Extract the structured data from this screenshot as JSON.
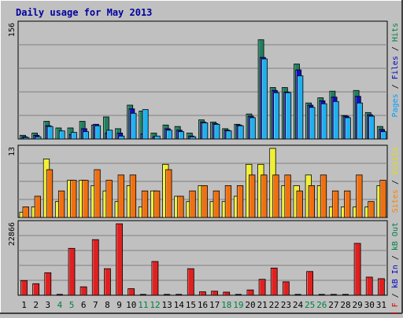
{
  "chart_data": {
    "type": "bar",
    "title": "Daily usage for May 2013",
    "days": [
      "1",
      "2",
      "3",
      "4",
      "5",
      "6",
      "7",
      "8",
      "9",
      "10",
      "11",
      "12",
      "13",
      "14",
      "15",
      "16",
      "17",
      "18",
      "19",
      "20",
      "21",
      "22",
      "23",
      "24",
      "25",
      "26",
      "27",
      "28",
      "29",
      "30",
      "31"
    ],
    "weekend_days": [
      "4",
      "5",
      "11",
      "12",
      "18",
      "19",
      "25",
      "26"
    ],
    "panels": [
      {
        "id": "hits",
        "ymax_label": "156",
        "ymax": 156,
        "right_label": [
          {
            "text": "Pages",
            "color": "#00a0ff"
          },
          {
            "text": " / ",
            "color": "#000000"
          },
          {
            "text": "Files",
            "color": "#0000c0"
          },
          {
            "text": " / ",
            "color": "#000000"
          },
          {
            "text": "Hits",
            "color": "#008040"
          }
        ],
        "series": [
          {
            "name": "Hits",
            "color": "#208060",
            "values": [
              5,
              8,
              24,
              15,
              15,
              24,
              19,
              30,
              14,
              46,
              38,
              8,
              19,
              17,
              8,
              26,
              23,
              14,
              20,
              34,
              135,
              70,
              70,
              102,
              49,
              56,
              65,
              32,
              66,
              36,
              17
            ]
          },
          {
            "name": "Files",
            "color": "#1010c0",
            "values": [
              3,
              5,
              18,
              0,
              6,
              14,
              20,
              8,
              8,
              41,
              7,
              3,
              14,
              12,
              4,
              23,
              21,
              12,
              19,
              31,
              111,
              66,
              64,
              94,
              46,
              52,
              57,
              31,
              58,
              33,
              13
            ]
          },
          {
            "name": "Pages",
            "color": "#20b0f0",
            "values": [
              2,
              3,
              17,
              11,
              9,
              10,
              18,
              12,
              4,
              35,
              40,
              4,
              12,
              10,
              3,
              22,
              20,
              11,
              18,
              29,
              109,
              63,
              63,
              86,
              43,
              48,
              51,
              29,
              49,
              31,
              10
            ]
          }
        ]
      },
      {
        "id": "visits",
        "ymax_label": "13",
        "ymax": 13,
        "right_label": [
          {
            "text": "Sites",
            "color": "#ff8000"
          },
          {
            "text": " / ",
            "color": "#000000"
          },
          {
            "text": "Visits",
            "color": "#e0e000"
          }
        ],
        "series": [
          {
            "name": "Visits",
            "color": "#f0f030",
            "values": [
              1,
              2,
              11,
              3,
              7,
              7,
              6,
              5,
              3,
              6,
              2,
              5,
              10,
              4,
              3,
              6,
              3,
              3,
              4,
              10,
              10,
              13,
              6,
              6,
              8,
              6,
              2,
              2,
              2,
              2,
              6
            ]
          },
          {
            "name": "Sites",
            "color": "#f07010",
            "values": [
              2,
              4,
              9,
              5,
              7,
              7,
              9,
              7,
              8,
              8,
              5,
              5,
              9,
              4,
              5,
              6,
              5,
              6,
              6,
              8,
              8,
              8,
              8,
              5,
              6,
              8,
              5,
              5,
              8,
              3,
              7
            ]
          }
        ]
      },
      {
        "id": "kbytes",
        "ymax_label": "22866",
        "ymax": 22866,
        "right_label": [
          {
            "text": "KB F",
            "color": "#e00000"
          },
          {
            "text": " / ",
            "color": "#000000"
          },
          {
            "text": "kB In",
            "color": "#0000c0"
          },
          {
            "text": " / ",
            "color": "#000000"
          },
          {
            "text": "kB Out",
            "color": "#008040"
          }
        ],
        "series": [
          {
            "name": "KB F",
            "color": "#e02020",
            "values": [
              4700,
              3700,
              7200,
              0,
              15000,
              2700,
              17800,
              8500,
              22866,
              2100,
              0,
              10800,
              0,
              0,
              8500,
              1100,
              1300,
              1000,
              0,
              1700,
              5100,
              8700,
              4300,
              0,
              7600,
              0,
              0,
              0,
              16600,
              5800,
              5300
            ]
          }
        ]
      }
    ]
  }
}
